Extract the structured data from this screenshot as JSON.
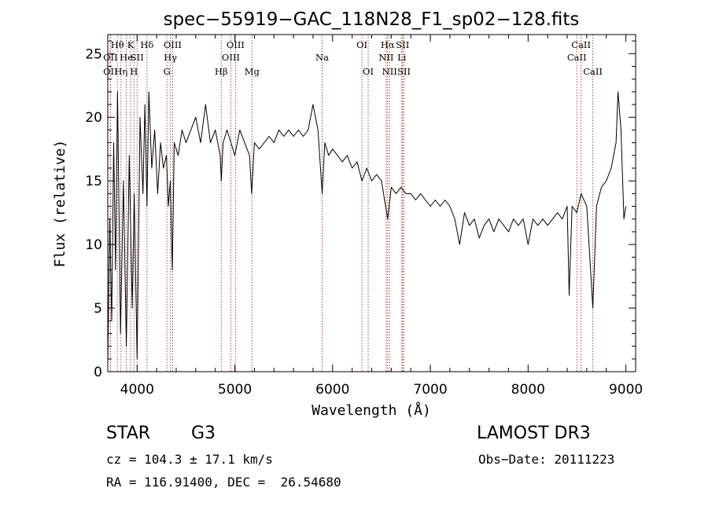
{
  "chart_data": {
    "type": "line",
    "title": "spec−55919−GAC_118N28_F1_sp02−128.fits",
    "xlabel": "Wavelength (Å)",
    "ylabel": "Flux (relative)",
    "xlim": [
      3700,
      9100
    ],
    "ylim": [
      0,
      26.5
    ],
    "xticks": [
      4000,
      5000,
      6000,
      7000,
      8000,
      9000
    ],
    "yticks": [
      0,
      5,
      10,
      15,
      20,
      25
    ],
    "grid": false,
    "series": [
      {
        "name": "flux",
        "x": [
          3700,
          3720,
          3740,
          3760,
          3780,
          3800,
          3830,
          3860,
          3890,
          3920,
          3950,
          3970,
          4000,
          4030,
          4060,
          4080,
          4101,
          4120,
          4150,
          4180,
          4210,
          4240,
          4270,
          4300,
          4320,
          4340,
          4360,
          4380,
          4420,
          4460,
          4500,
          4550,
          4600,
          4650,
          4700,
          4750,
          4800,
          4850,
          4861,
          4880,
          4920,
          4960,
          5000,
          5050,
          5100,
          5150,
          5172,
          5200,
          5250,
          5300,
          5350,
          5400,
          5450,
          5500,
          5550,
          5600,
          5650,
          5700,
          5750,
          5800,
          5850,
          5893,
          5920,
          5960,
          6000,
          6050,
          6100,
          6150,
          6200,
          6250,
          6300,
          6350,
          6400,
          6450,
          6500,
          6563,
          6600,
          6650,
          6700,
          6750,
          6800,
          6850,
          6900,
          6950,
          7000,
          7050,
          7100,
          7150,
          7200,
          7250,
          7300,
          7350,
          7400,
          7450,
          7500,
          7550,
          7600,
          7650,
          7700,
          7750,
          7800,
          7850,
          7900,
          7950,
          8000,
          8050,
          8100,
          8150,
          8200,
          8250,
          8300,
          8350,
          8400,
          8420,
          8450,
          8498,
          8542,
          8600,
          8662,
          8700,
          8750,
          8800,
          8850,
          8900,
          8920,
          8950,
          8980,
          9000
        ],
        "y": [
          0.5,
          12,
          4,
          18,
          8,
          22,
          3,
          15,
          2,
          17,
          5,
          14,
          1,
          20,
          14,
          21,
          13,
          22,
          16,
          19,
          14,
          18,
          16,
          17,
          13,
          15,
          8,
          18,
          17,
          19,
          18,
          19,
          20,
          18,
          21,
          18,
          19,
          17,
          15,
          18,
          19,
          18,
          17,
          19,
          18,
          17,
          14,
          18,
          17.5,
          18,
          18.5,
          18,
          19,
          18.5,
          19,
          18.5,
          19,
          18.5,
          19,
          21,
          19,
          14,
          18,
          17,
          17.5,
          17,
          16.5,
          17,
          16,
          16.5,
          15,
          16,
          15,
          15.5,
          15,
          12,
          14.5,
          14,
          14.5,
          14,
          14,
          13.5,
          14,
          13.5,
          13,
          13.5,
          13,
          13.5,
          13,
          12,
          10,
          12.5,
          11.5,
          12,
          10.5,
          11.5,
          12,
          11,
          12,
          11.5,
          11,
          12,
          11.5,
          12,
          10,
          12,
          11.5,
          12,
          11.5,
          12,
          12.5,
          12,
          13,
          6,
          13,
          12.5,
          14,
          13,
          5,
          13,
          14.5,
          15,
          16,
          18,
          22,
          19,
          12,
          13
        ]
      }
    ],
    "line_markers": [
      {
        "label": "Hθ",
        "x": 3798,
        "row": 1
      },
      {
        "label": "OII",
        "x": 3727,
        "row": 2
      },
      {
        "label": "OII",
        "x": 3727,
        "row": 3
      },
      {
        "label": "Hη",
        "x": 3835,
        "row": 3
      },
      {
        "label": "He",
        "x": 3889,
        "row": 2
      },
      {
        "label": "K",
        "x": 3934,
        "row": 1
      },
      {
        "label": "H",
        "x": 3968,
        "row": 3
      },
      {
        "label": "SII",
        "x": 4000,
        "row": 2
      },
      {
        "label": "Hδ",
        "x": 4101,
        "row": 1
      },
      {
        "label": "OIII",
        "x": 4363,
        "row": 1
      },
      {
        "label": "Hγ",
        "x": 4340,
        "row": 2
      },
      {
        "label": "G",
        "x": 4305,
        "row": 3
      },
      {
        "label": "Hβ",
        "x": 4861,
        "row": 3
      },
      {
        "label": "OIII",
        "x": 5007,
        "row": 1
      },
      {
        "label": "OIII",
        "x": 4959,
        "row": 2
      },
      {
        "label": "Mg",
        "x": 5175,
        "row": 3
      },
      {
        "label": "Na",
        "x": 5893,
        "row": 2
      },
      {
        "label": "OI",
        "x": 6300,
        "row": 1
      },
      {
        "label": "OI",
        "x": 6364,
        "row": 3
      },
      {
        "label": "Hα",
        "x": 6563,
        "row": 1
      },
      {
        "label": "SII",
        "x": 6716,
        "row": 1
      },
      {
        "label": "NII",
        "x": 6548,
        "row": 2
      },
      {
        "label": "Li",
        "x": 6708,
        "row": 2
      },
      {
        "label": "NII",
        "x": 6583,
        "row": 3
      },
      {
        "label": "SII",
        "x": 6731,
        "row": 3
      },
      {
        "label": "CaII",
        "x": 8542,
        "row": 1
      },
      {
        "label": "CaII",
        "x": 8498,
        "row": 2
      },
      {
        "label": "CaII",
        "x": 8662,
        "row": 3
      }
    ]
  },
  "info": {
    "class_label": "STAR",
    "subclass": "G3",
    "survey": "LAMOST DR3",
    "cz": "cz = 104.3 ± 17.1 km/s",
    "obs_date": "Obs−Date: 20111223",
    "coords": "RA = 116.91400, DEC =  26.54680"
  },
  "colors": {
    "line": "#000000",
    "marker": "#b03030",
    "background": "#ffffff"
  }
}
